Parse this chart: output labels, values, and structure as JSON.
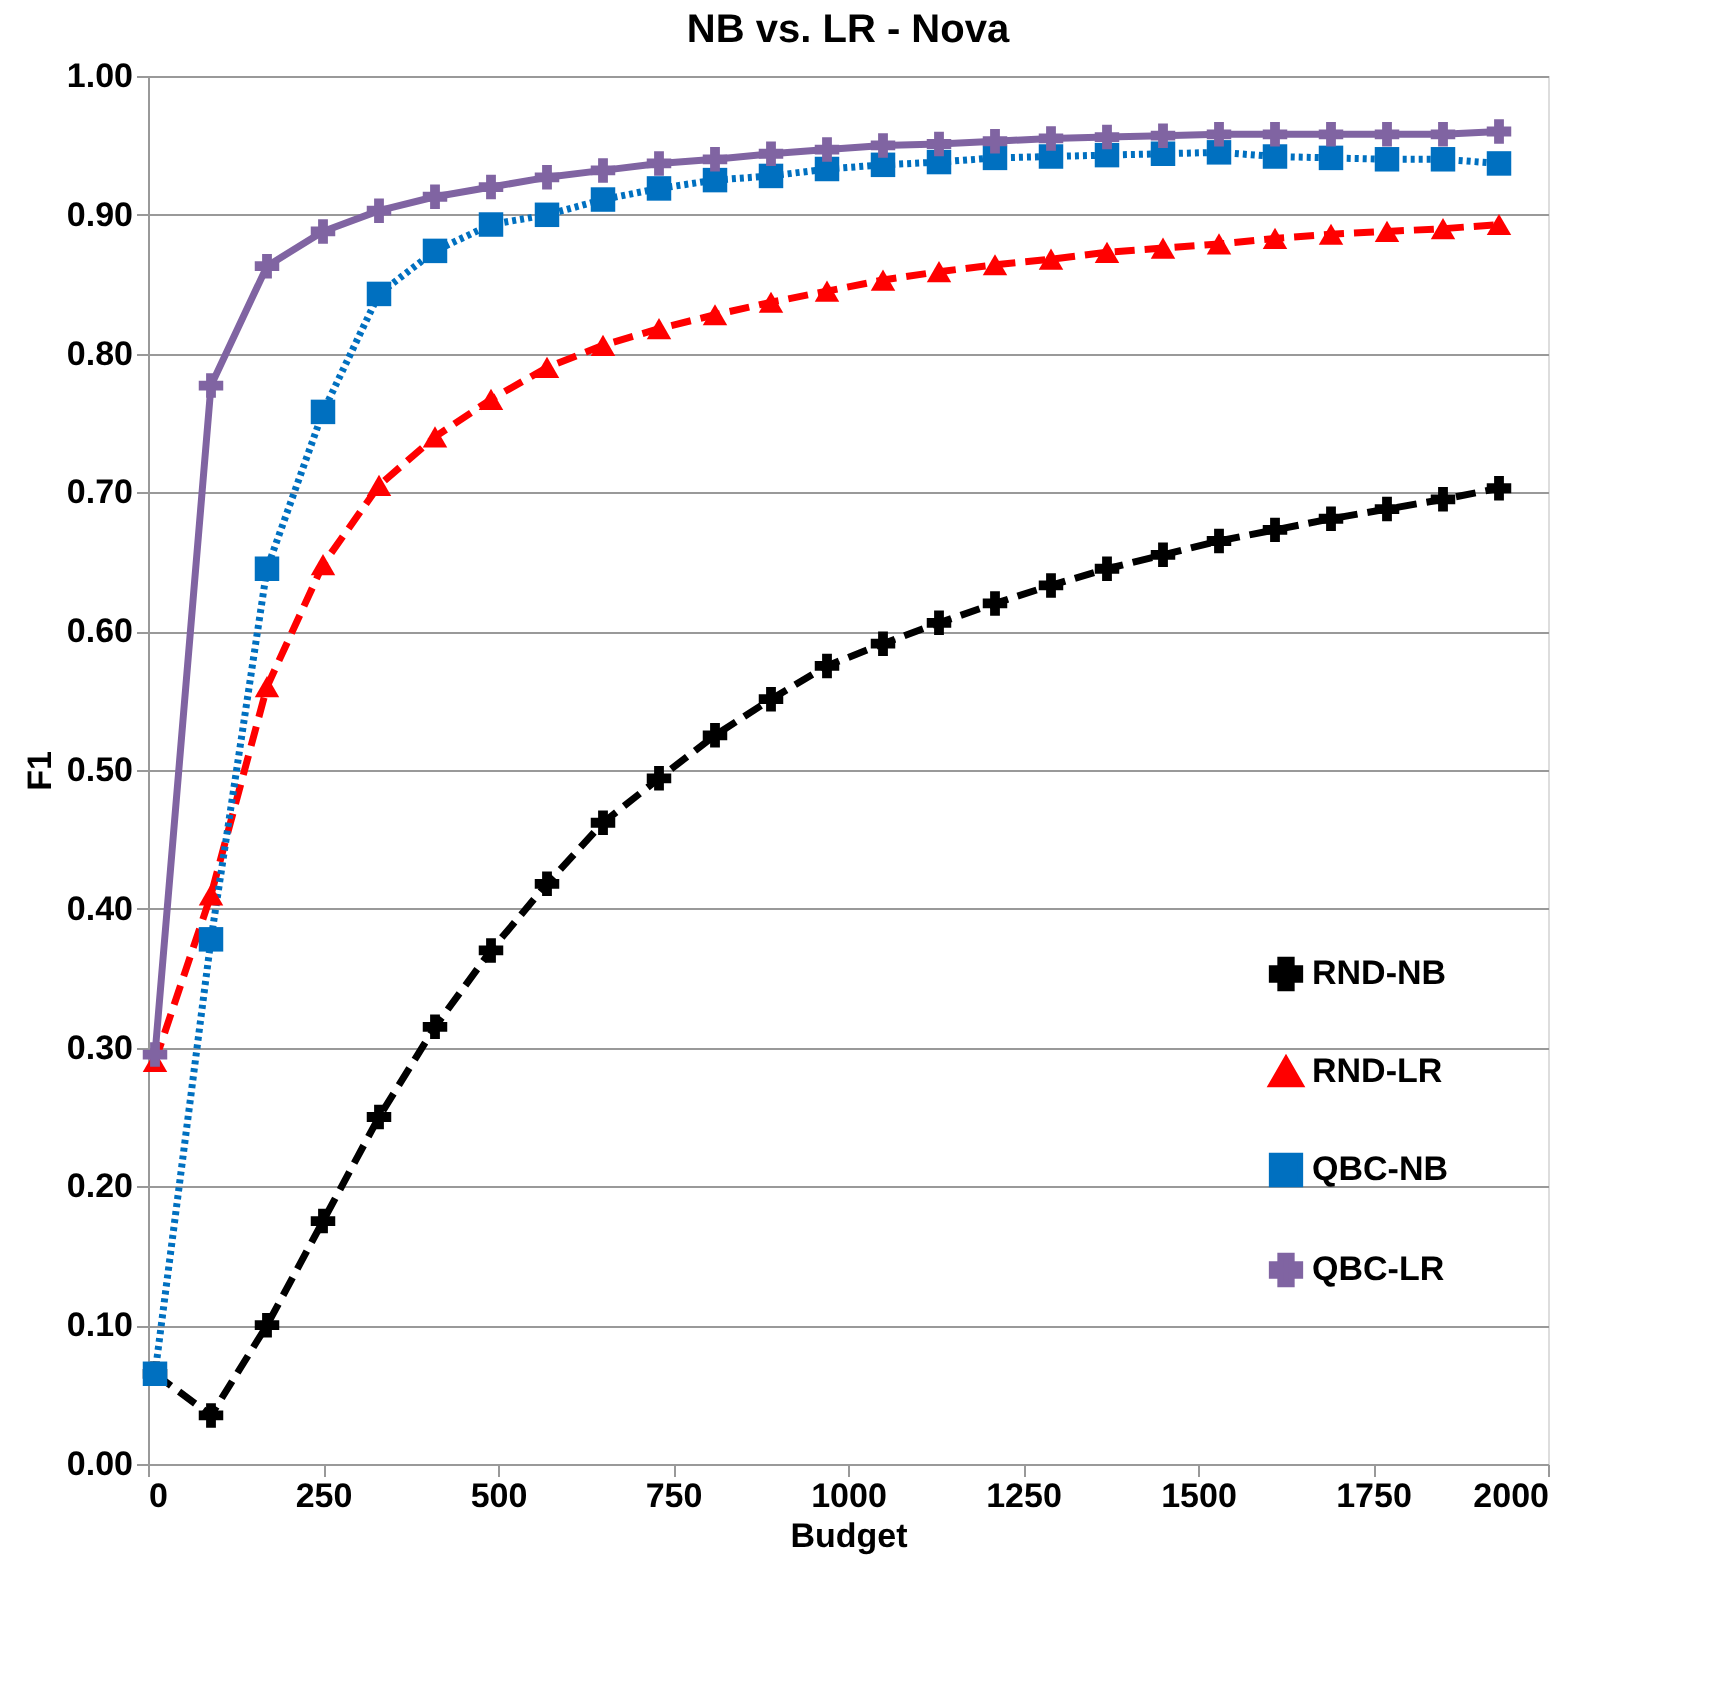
{
  "chart_data": {
    "type": "line",
    "title": "NB vs. LR - Nova",
    "xlabel": "Budget",
    "ylabel": "F1",
    "x": [
      10,
      90,
      170,
      250,
      330,
      410,
      490,
      570,
      650,
      730,
      810,
      890,
      970,
      1050,
      1130,
      1210,
      1290,
      1370,
      1450,
      1530,
      1610,
      1690,
      1770,
      1850,
      1930
    ],
    "xlim": [
      0,
      2000
    ],
    "xticks": [
      0,
      250,
      500,
      750,
      {
        "value": 1000,
        "label": "1000"
      },
      {
        "value": 1250,
        "label": "1250"
      },
      {
        "value": 1500,
        "label": "1500"
      },
      {
        "value": 1750,
        "label": "1750"
      },
      {
        "value": 2000,
        "label": "2000"
      }
    ],
    "ylim": [
      0,
      1
    ],
    "yticks": [
      {
        "value": 0,
        "label": "0.00"
      },
      {
        "value": 0.1,
        "label": "0.10"
      },
      {
        "value": 0.2,
        "label": "0.20"
      },
      {
        "value": 0.3,
        "label": "0.30"
      },
      {
        "value": 0.4,
        "label": "0.40"
      },
      {
        "value": 0.5,
        "label": "0.50"
      },
      {
        "value": 0.6,
        "label": "0.60"
      },
      {
        "value": 0.7,
        "label": "0.70"
      },
      {
        "value": 0.8,
        "label": "0.80"
      },
      {
        "value": 0.9,
        "label": "0.90"
      },
      {
        "value": 1,
        "label": "1.00"
      }
    ],
    "grid": "y",
    "legend": "bottom right",
    "series": [
      {
        "name": "RND-NB",
        "color": "#000000",
        "marker": "cross",
        "line_style": "dashed",
        "values": [
          0.065,
          0.035,
          0.1,
          0.175,
          0.25,
          0.315,
          0.37,
          0.418,
          0.462,
          0.494,
          0.525,
          0.551,
          0.575,
          0.591,
          0.606,
          0.62,
          0.633,
          0.645,
          0.655,
          0.665,
          0.673,
          0.681,
          0.688,
          0.695,
          0.703
        ]
      },
      {
        "name": "RND-LR",
        "color": "#ff0000",
        "marker": "triangle",
        "line_style": "dashed",
        "values": [
          0.29,
          0.41,
          0.56,
          0.648,
          0.705,
          0.74,
          0.767,
          0.79,
          0.806,
          0.818,
          0.828,
          0.837,
          0.845,
          0.853,
          0.859,
          0.864,
          0.868,
          0.873,
          0.876,
          0.879,
          0.883,
          0.886,
          0.888,
          0.89,
          0.893
        ]
      },
      {
        "name": "QBC-NB",
        "color": "#0070c0",
        "marker": "square",
        "line_style": "dotted",
        "values": [
          0.065,
          0.378,
          0.645,
          0.758,
          0.843,
          0.874,
          0.893,
          0.9,
          0.911,
          0.919,
          0.925,
          0.928,
          0.933,
          0.936,
          0.938,
          0.941,
          0.942,
          0.943,
          0.944,
          0.945,
          0.942,
          0.941,
          0.94,
          0.94,
          0.937
        ]
      },
      {
        "name": "QBC-LR",
        "color": "#8064a2",
        "marker": "cross",
        "line_style": "solid",
        "values": [
          0.295,
          0.777,
          0.863,
          0.888,
          0.903,
          0.913,
          0.92,
          0.927,
          0.932,
          0.937,
          0.94,
          0.944,
          0.947,
          0.95,
          0.951,
          0.953,
          0.955,
          0.956,
          0.957,
          0.958,
          0.958,
          0.958,
          0.958,
          0.958,
          0.96
        ]
      }
    ]
  }
}
